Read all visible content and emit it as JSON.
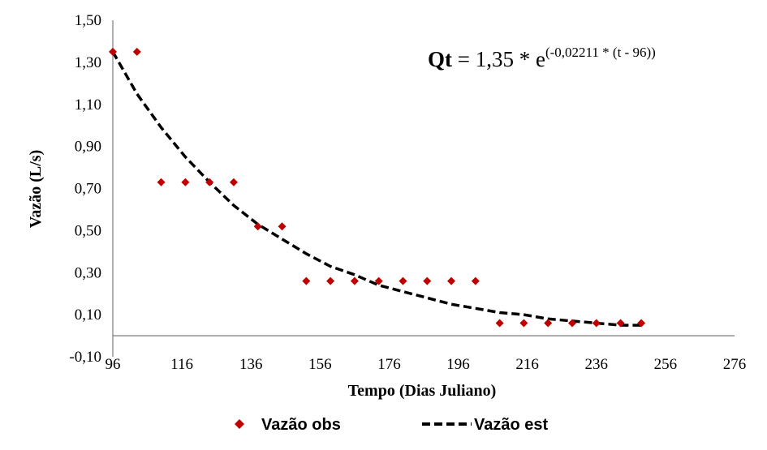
{
  "chart_data": {
    "type": "scatter",
    "xlabel": "Tempo (Dias Juliano)",
    "ylabel": "Vazão (L/s)",
    "xlim": [
      96,
      276
    ],
    "ylim": [
      -0.1,
      1.5
    ],
    "xticks": [
      96,
      116,
      136,
      156,
      176,
      196,
      216,
      236,
      256,
      276
    ],
    "xtick_labels": [
      "96",
      "116",
      "136",
      "156",
      "176",
      "196",
      "216",
      "236",
      "256",
      "276"
    ],
    "yticks": [
      1.5,
      1.3,
      1.1,
      0.9,
      0.7,
      0.5,
      0.3,
      0.1,
      -0.1
    ],
    "ytick_labels": [
      "1,50",
      "1,30",
      "1,10",
      "0,90",
      "0,70",
      "0,50",
      "0,30",
      "0,10",
      "-0,10"
    ],
    "grid": false,
    "legend_position": "bottom",
    "annotation": {
      "prefix": "Qt",
      "middle": " = 1,35 * e",
      "exponent": "(-0,02211  * (t - 96))"
    },
    "series": [
      {
        "name": "Vazão obs",
        "kind": "scatter",
        "marker": "diamond",
        "color": "#c00000",
        "x": [
          96,
          103,
          110,
          117,
          124,
          131,
          138,
          145,
          152,
          159,
          166,
          173,
          180,
          187,
          194,
          201,
          208,
          215,
          222,
          229,
          236,
          243,
          249
        ],
        "y": [
          1.35,
          1.35,
          0.73,
          0.73,
          0.73,
          0.73,
          0.52,
          0.52,
          0.26,
          0.26,
          0.26,
          0.26,
          0.26,
          0.26,
          0.26,
          0.26,
          0.06,
          0.06,
          0.06,
          0.06,
          0.06,
          0.06,
          0.06
        ]
      },
      {
        "name": "Vazão est",
        "kind": "line",
        "style": "dashed",
        "color": "#000000",
        "x": [
          96,
          103,
          110,
          117,
          124,
          131,
          138,
          145,
          152,
          159,
          166,
          173,
          180,
          187,
          194,
          201,
          208,
          215,
          222,
          229,
          236,
          243,
          249
        ],
        "y": [
          1.35,
          1.15,
          0.99,
          0.85,
          0.73,
          0.62,
          0.53,
          0.46,
          0.39,
          0.33,
          0.29,
          0.24,
          0.21,
          0.18,
          0.15,
          0.13,
          0.11,
          0.1,
          0.08,
          0.07,
          0.06,
          0.05,
          0.05
        ]
      }
    ]
  }
}
